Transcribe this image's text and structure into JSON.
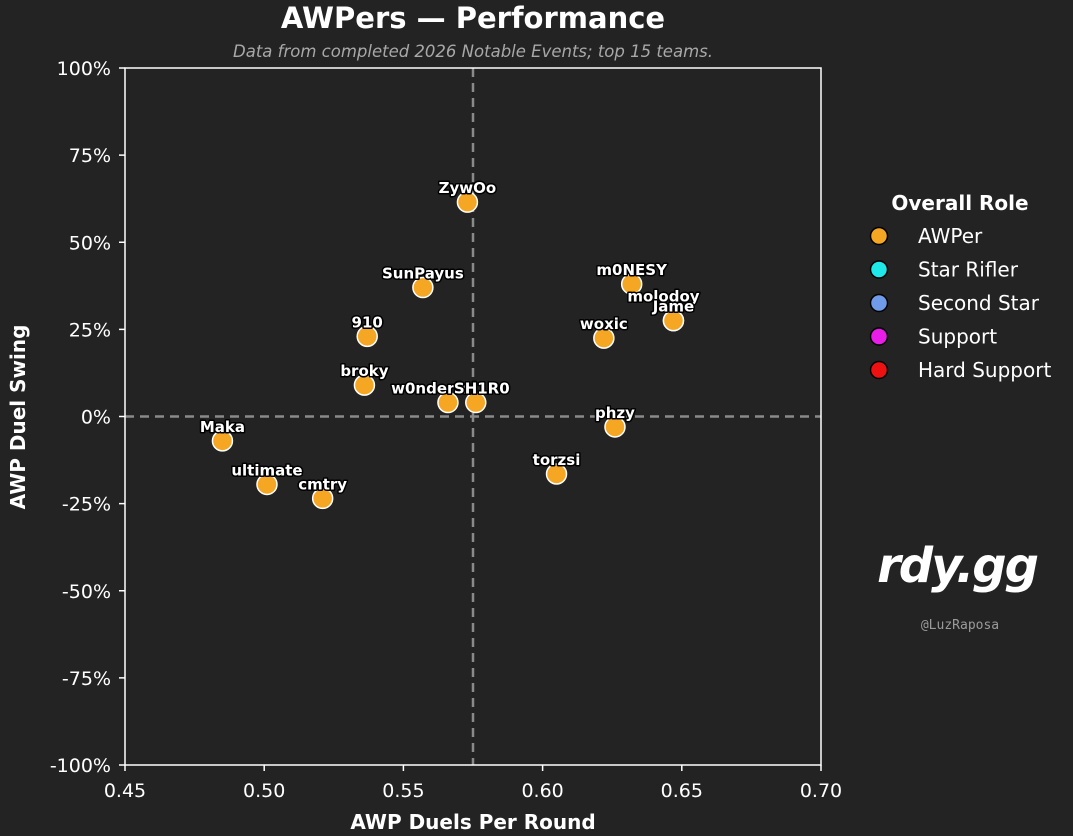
{
  "chart_data": {
    "type": "scatter",
    "title": "AWPers — Performance",
    "subtitle": "Data from completed 2026 Notable Events; top 15 teams.",
    "xlabel": "AWP Duels Per Round",
    "ylabel": "AWP Duel Swing",
    "xlim": [
      0.45,
      0.7
    ],
    "ylim": [
      -100,
      100
    ],
    "x_ticks": [
      "0.45",
      "0.50",
      "0.55",
      "0.60",
      "0.65",
      "0.70"
    ],
    "y_ticks": [
      "100%",
      "75%",
      "50%",
      "25%",
      "0%",
      "-25%",
      "-50%",
      "-75%",
      "-100%"
    ],
    "reference_lines": {
      "x": 0.575,
      "y": 0
    },
    "grid": false,
    "legend": {
      "title": "Overall Role",
      "placement": "right",
      "items": [
        {
          "label": "AWPer",
          "color": "#f5a623"
        },
        {
          "label": "Star Rifler",
          "color": "#1ee8e8"
        },
        {
          "label": "Second Star",
          "color": "#6f9be8"
        },
        {
          "label": "Support",
          "color": "#e81ee8"
        },
        {
          "label": "Hard Support",
          "color": "#ee1111"
        }
      ]
    },
    "points": [
      {
        "label": "ZywOo",
        "x": 0.573,
        "y": 61.5,
        "role": "AWPer"
      },
      {
        "label": "m0NESY",
        "x": 0.632,
        "y": 38,
        "role": "AWPer"
      },
      {
        "label": "molodoy",
        "x": 0.647,
        "y": 27.5,
        "role": "AWPer"
      },
      {
        "label": "Jame",
        "x": 0.647,
        "y": 27.5,
        "role": "AWPer"
      },
      {
        "label": "SunPayus",
        "x": 0.557,
        "y": 37,
        "role": "AWPer"
      },
      {
        "label": "910",
        "x": 0.537,
        "y": 23,
        "role": "AWPer"
      },
      {
        "label": "woxic",
        "x": 0.622,
        "y": 22.5,
        "role": "AWPer"
      },
      {
        "label": "broky",
        "x": 0.536,
        "y": 9,
        "role": "AWPer"
      },
      {
        "label": "w0nderful",
        "x": 0.566,
        "y": 4,
        "role": "AWPer"
      },
      {
        "label": "SH1R0",
        "x": 0.576,
        "y": 4,
        "role": "AWPer"
      },
      {
        "label": "phzy",
        "x": 0.626,
        "y": -3,
        "role": "AWPer"
      },
      {
        "label": "Maka",
        "x": 0.485,
        "y": -7,
        "role": "AWPer"
      },
      {
        "label": "torzsi",
        "x": 0.605,
        "y": -16.5,
        "role": "AWPer"
      },
      {
        "label": "ultimate",
        "x": 0.501,
        "y": -19.5,
        "role": "AWPer"
      },
      {
        "label": "cmtry",
        "x": 0.521,
        "y": -23.5,
        "role": "AWPer"
      }
    ]
  },
  "branding": {
    "logo_text": "rdy.gg",
    "handle": "@LuzRaposa"
  },
  "colors": {
    "background": "#232323",
    "axes": "#ffffff",
    "reference_line": "#8a8a8a",
    "point_edge": "#ffffff"
  }
}
